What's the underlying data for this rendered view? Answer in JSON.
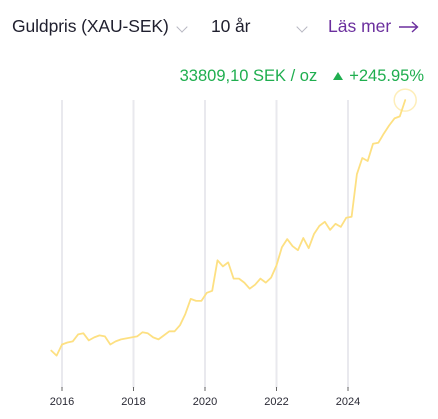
{
  "header": {
    "asset": "Guldpris (XAU-SEK)",
    "period": "10 år",
    "read_more": "Läs mer"
  },
  "summary": {
    "price": "33809,10 SEK / oz",
    "change": "+245.95%"
  },
  "colors": {
    "line": "#fde082",
    "positive": "#1fae4f",
    "link": "#6b2f9e"
  },
  "chart_data": {
    "type": "line",
    "title": "",
    "xlabel": "",
    "ylabel": "",
    "x_ticks": [
      "2016",
      "2018",
      "2020",
      "2022",
      "2024"
    ],
    "xlim": [
      2015.6,
      2025.75
    ],
    "ylim": [
      6000,
      35000
    ],
    "grid": "vertical lines at x ticks",
    "series": [
      {
        "x": [
          2015.7,
          2015.85,
          2016.0,
          2016.15,
          2016.3,
          2016.45,
          2016.6,
          2016.75,
          2016.9,
          2017.05,
          2017.2,
          2017.35,
          2017.5,
          2017.65,
          2017.8,
          2017.95,
          2018.1,
          2018.25,
          2018.4,
          2018.55,
          2018.7,
          2018.85,
          2019.0,
          2019.15,
          2019.3,
          2019.45,
          2019.6,
          2019.75,
          2019.9,
          2020.05,
          2020.2,
          2020.35,
          2020.5,
          2020.65,
          2020.8,
          2020.95,
          2021.1,
          2021.25,
          2021.4,
          2021.55,
          2021.7,
          2021.85,
          2022.0,
          2022.15,
          2022.3,
          2022.45,
          2022.6,
          2022.75,
          2022.9,
          2023.05,
          2023.2,
          2023.35,
          2023.5,
          2023.65,
          2023.8,
          2023.95,
          2024.1,
          2024.25,
          2024.4,
          2024.55,
          2024.7,
          2024.85,
          2025.0,
          2025.15,
          2025.3,
          2025.45,
          2025.6
        ],
        "y": [
          9100,
          8600,
          9700,
          9900,
          10000,
          10700,
          10800,
          10100,
          10400,
          10600,
          10500,
          9700,
          10000,
          10200,
          10300,
          10400,
          10500,
          10900,
          10800,
          10400,
          10200,
          10600,
          11000,
          11000,
          11600,
          12700,
          14200,
          14000,
          14000,
          14800,
          15000,
          18000,
          17400,
          17800,
          16200,
          16200,
          15800,
          15200,
          15600,
          16200,
          15800,
          16300,
          17500,
          19300,
          20100,
          19400,
          19000,
          20200,
          19200,
          20600,
          21400,
          21800,
          21000,
          21600,
          21300,
          22200,
          22300,
          26500,
          28100,
          27800,
          29500,
          29600,
          30500,
          31300,
          32000,
          32200,
          33809
        ]
      }
    ]
  }
}
